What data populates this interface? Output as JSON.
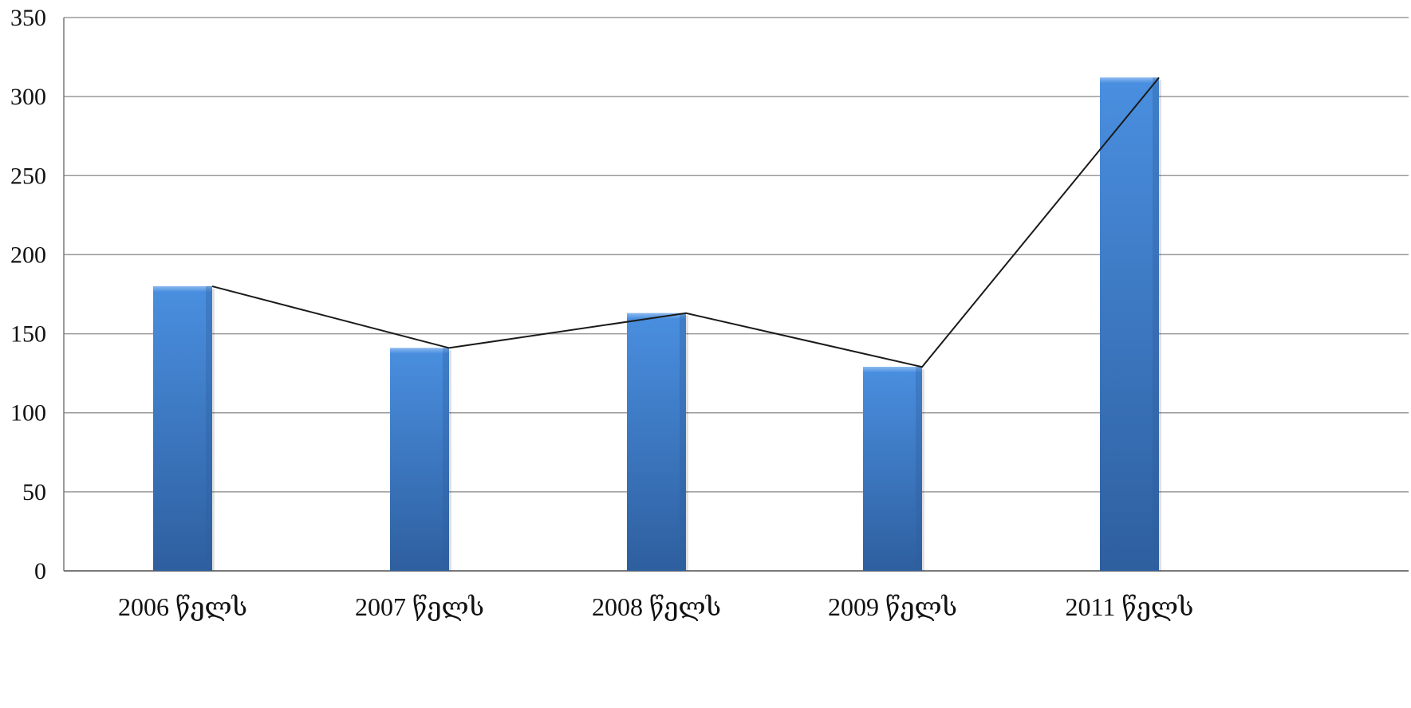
{
  "chart_data": {
    "type": "bar",
    "categories": [
      "2006 წელს",
      "2007 წელს",
      "2008 წელს",
      "2009 წელს",
      "2011 წელს"
    ],
    "series": [
      {
        "type": "bar",
        "values": [
          180,
          141,
          163,
          129,
          312
        ]
      },
      {
        "type": "line",
        "values": [
          180,
          141,
          163,
          129,
          312
        ]
      }
    ],
    "title": "",
    "xlabel": "",
    "ylabel": "",
    "ylim": [
      0,
      350
    ],
    "yticks": [
      0,
      50,
      100,
      150,
      200,
      250,
      300,
      350
    ],
    "grid": true,
    "legend": "none"
  },
  "colors": {
    "bar_fill": "#3d7fd1",
    "bar_fill_dark": "#2e5f9f",
    "line": "#1a1a1a",
    "gridline": "#9a9a9a"
  }
}
